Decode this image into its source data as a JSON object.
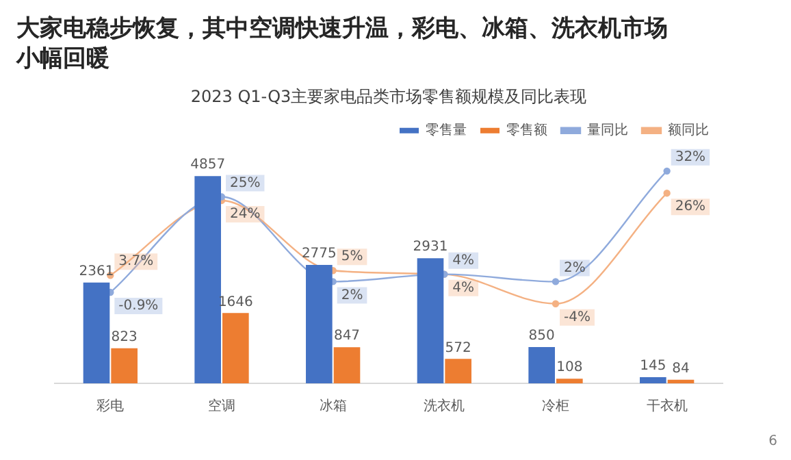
{
  "chart_data": {
    "type": "bar",
    "title": "大家电稳步恢复，其中空调快速升温，彩电、冰箱、洗衣机市场小幅回暖",
    "subtitle": "2023 Q1-Q3主要家电品类市场零售额规模及同比表现",
    "categories": [
      "彩电",
      "空调",
      "冰箱",
      "洗衣机",
      "冷柜",
      "干衣机"
    ],
    "series": [
      {
        "name": "零售量",
        "color": "#4472c4",
        "values": [
          2361,
          4857,
          2775,
          2931,
          850,
          145
        ]
      },
      {
        "name": "零售额",
        "color": "#ed7d31",
        "values": [
          823,
          1646,
          847,
          572,
          108,
          84
        ]
      },
      {
        "name": "量同比",
        "type": "line",
        "axis": "y2",
        "color": "#8faadc",
        "value_labels": [
          "-0.9%",
          "25%",
          "2%",
          "4%",
          "2%",
          "32%"
        ],
        "values": [
          -0.9,
          25,
          2,
          4,
          2,
          32
        ]
      },
      {
        "name": "额同比",
        "type": "line",
        "axis": "y2",
        "color": "#f4b183",
        "value_labels": [
          "3.7%",
          "24%",
          "5%",
          "4%",
          "-4%",
          "26%"
        ],
        "values": [
          3.7,
          24,
          5,
          4,
          -4,
          26
        ]
      }
    ],
    "data_labels": true,
    "legend": "top right",
    "marker": "circle",
    "grid": false,
    "annotations": [
      "6"
    ]
  }
}
